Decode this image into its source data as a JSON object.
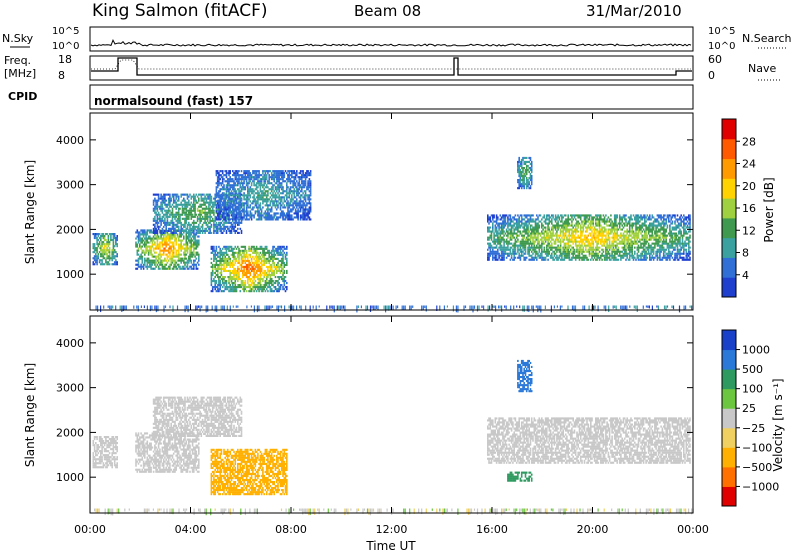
{
  "header": {
    "station": "King Salmon (fitACF)",
    "beam": "Beam 08",
    "date": "31/Mar/2010"
  },
  "noise_panel": {
    "left_label": "N.Sky",
    "right_label": "N.Search",
    "tick_hi": "10^5",
    "tick_lo": "10^0"
  },
  "freq_panel": {
    "left_label_1": "Freq.",
    "left_label_2": "[MHz]",
    "right_label": "Nave",
    "left_ticks": [
      "18",
      "8"
    ],
    "right_ticks": [
      "60",
      "0"
    ]
  },
  "cpid": {
    "label": "CPID",
    "mode": "normalsound (fast) 157"
  },
  "colors": {
    "power_scale": [
      "#1f3fcf",
      "#2f6fd6",
      "#3aa0a0",
      "#3f9a4f",
      "#9fd040",
      "#ffd200",
      "#ff9a00",
      "#ff5a00",
      "#e00000"
    ],
    "velocity_scale": [
      "#1840c8",
      "#2a78d8",
      "#2e9a60",
      "#6cc640",
      "#c8c8c8",
      "#f0d060",
      "#ffb000",
      "#ff7000",
      "#e00000"
    ]
  },
  "chart_data": [
    {
      "type": "heatmap",
      "name": "power",
      "xlabel": "Time UT",
      "ylabel": "Slant Range [km]",
      "xlim": [
        0,
        24
      ],
      "ylim": [
        200,
        4600
      ],
      "x_ticks": [
        "00:00",
        "04:00",
        "08:00",
        "12:00",
        "16:00",
        "20:00",
        "00:00"
      ],
      "y_ticks": [
        "1000",
        "2000",
        "3000",
        "4000"
      ],
      "colorbar_label": "Power [dB]",
      "colorbar_ticks": [
        "4",
        "8",
        "12",
        "16",
        "20",
        "24",
        "28"
      ],
      "features": [
        {
          "t0": 0.1,
          "t1": 1.1,
          "r0": 1200,
          "r1": 1900,
          "peak": 20
        },
        {
          "t0": 1.8,
          "t1": 4.3,
          "r0": 1100,
          "r1": 2000,
          "peak": 26
        },
        {
          "t0": 4.8,
          "t1": 7.8,
          "r0": 600,
          "r1": 1600,
          "peak": 28
        },
        {
          "t0": 2.5,
          "t1": 6.0,
          "r0": 1900,
          "r1": 2800,
          "peak": 14
        },
        {
          "t0": 5.0,
          "t1": 8.8,
          "r0": 2200,
          "r1": 3300,
          "peak": 10
        },
        {
          "t0": 15.8,
          "t1": 23.9,
          "r0": 1300,
          "r1": 2300,
          "peak": 22
        },
        {
          "t0": 17.0,
          "t1": 17.6,
          "r0": 2900,
          "r1": 3600,
          "peak": 14
        }
      ]
    },
    {
      "type": "heatmap",
      "name": "velocity",
      "xlabel": "Time UT",
      "ylabel": "Slant Range [km]",
      "xlim": [
        0,
        24
      ],
      "ylim": [
        200,
        4600
      ],
      "x_ticks": [
        "00:00",
        "04:00",
        "08:00",
        "12:00",
        "16:00",
        "20:00",
        "00:00"
      ],
      "y_ticks": [
        "1000",
        "2000",
        "3000",
        "4000"
      ],
      "colorbar_label": "Velocity [m s⁻¹]",
      "colorbar_ticks": [
        "1000",
        "500",
        "100",
        "25",
        "−25",
        "−100",
        "−500",
        "−1000"
      ],
      "features": [
        {
          "t0": 0.1,
          "t1": 1.1,
          "r0": 1200,
          "r1": 1900,
          "v": 0
        },
        {
          "t0": 1.8,
          "t1": 4.3,
          "r0": 1100,
          "r1": 2000,
          "v": 0
        },
        {
          "t0": 4.8,
          "t1": 7.8,
          "r0": 600,
          "r1": 1600,
          "v": -300
        },
        {
          "t0": 2.5,
          "t1": 6.0,
          "r0": 1900,
          "r1": 2800,
          "v": 0
        },
        {
          "t0": 15.8,
          "t1": 23.9,
          "r0": 1300,
          "r1": 2300,
          "v": 0
        },
        {
          "t0": 17.0,
          "t1": 17.6,
          "r0": 2900,
          "r1": 3600,
          "v": 800
        },
        {
          "t0": 16.6,
          "t1": 17.6,
          "r0": 900,
          "r1": 1100,
          "v": 150
        }
      ]
    }
  ]
}
